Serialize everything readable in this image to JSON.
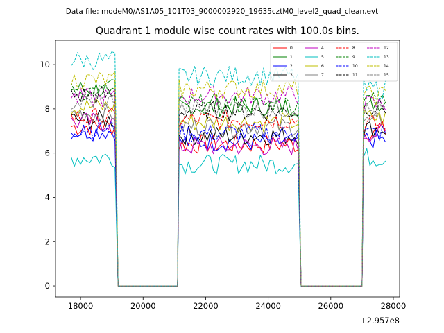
{
  "suptitle": "Data file: modeM0/AS1A05_101T03_9000002920_19635cztM0_level2_quad_clean.evt",
  "chart_data": {
    "type": "line",
    "title": "Quadrant 1 module wise count rates with 100.0s bins.",
    "xlabel": "",
    "ylabel": "",
    "x_offset_label": "+2.957e8",
    "xlim": [
      17200,
      28200
    ],
    "ylim": [
      -0.5,
      11.1
    ],
    "xticks": [
      18000,
      20000,
      22000,
      24000,
      26000,
      28000
    ],
    "yticks": [
      0,
      2,
      4,
      6,
      8,
      10
    ],
    "grid": false,
    "legend_placement": "top-right",
    "segments": [
      {
        "start": 17700,
        "end": 19100,
        "step": 100
      },
      {
        "start": 21150,
        "end": 24950,
        "step": 100
      },
      {
        "start": 27050,
        "end": 27750,
        "step": 100
      }
    ],
    "gap_drop_points": [
      [
        19200,
        0
      ],
      [
        21100,
        0
      ],
      [
        25050,
        0
      ],
      [
        27000,
        0
      ]
    ],
    "series": [
      {
        "name": "0",
        "color": "#ff0000",
        "dash": "solid",
        "levels": [
          7.2,
          6.4,
          7.0
        ]
      },
      {
        "name": "1",
        "color": "#008000",
        "dash": "solid",
        "levels": [
          8.9,
          8.1,
          8.3
        ]
      },
      {
        "name": "2",
        "color": "#0000ff",
        "dash": "solid",
        "levels": [
          7.0,
          6.5,
          6.6
        ]
      },
      {
        "name": "3",
        "color": "#000000",
        "dash": "solid",
        "levels": [
          7.5,
          6.8,
          7.1
        ]
      },
      {
        "name": "4",
        "color": "#c000c0",
        "dash": "solid",
        "levels": [
          7.4,
          6.3,
          6.9
        ]
      },
      {
        "name": "5",
        "color": "#00bfbf",
        "dash": "solid",
        "levels": [
          5.8,
          5.5,
          5.8
        ]
      },
      {
        "name": "6",
        "color": "#bfbf00",
        "dash": "solid",
        "levels": [
          8.1,
          7.4,
          7.6
        ]
      },
      {
        "name": "7",
        "color": "#808080",
        "dash": "solid",
        "levels": [
          7.8,
          7.2,
          7.4
        ]
      },
      {
        "name": "8",
        "color": "#ff0000",
        "dash": "dashed",
        "levels": [
          7.6,
          7.5,
          7.3
        ]
      },
      {
        "name": "9",
        "color": "#008000",
        "dash": "dashed",
        "levels": [
          8.8,
          8.2,
          8.4
        ]
      },
      {
        "name": "10",
        "color": "#0000ff",
        "dash": "dashed",
        "levels": [
          7.1,
          6.9,
          6.9
        ]
      },
      {
        "name": "11",
        "color": "#000000",
        "dash": "dashed",
        "levels": [
          8.6,
          7.9,
          8.1
        ]
      },
      {
        "name": "12",
        "color": "#c000c0",
        "dash": "dashed",
        "levels": [
          8.5,
          8.6,
          8.2
        ]
      },
      {
        "name": "13",
        "color": "#00bfbf",
        "dash": "dashed",
        "levels": [
          10.2,
          9.5,
          8.9
        ]
      },
      {
        "name": "14",
        "color": "#bfbf00",
        "dash": "dashed",
        "levels": [
          9.3,
          8.9,
          8.6
        ]
      },
      {
        "name": "15",
        "color": "#808080",
        "dash": "dashed",
        "levels": [
          8.3,
          8.0,
          7.9
        ]
      }
    ]
  }
}
